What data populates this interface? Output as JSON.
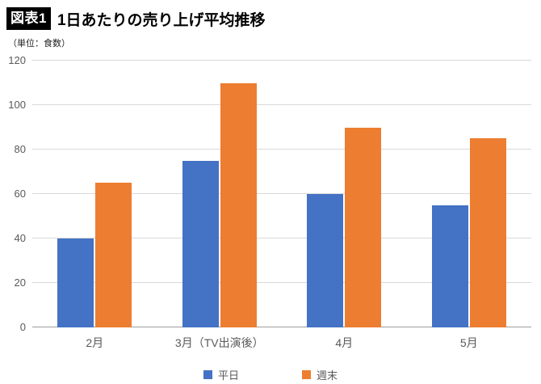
{
  "header": {
    "badge": "図表1"
  },
  "chart_data": {
    "type": "bar",
    "title": "1日あたりの売り上げ平均推移",
    "unit_label": "（単位：食数）",
    "categories": [
      "2月",
      "3月（TV出演後）",
      "4月",
      "5月"
    ],
    "series": [
      {
        "name": "平日",
        "color": "#4472C4",
        "values": [
          40,
          75,
          60,
          55
        ]
      },
      {
        "name": "週末",
        "color": "#ED7D31",
        "values": [
          65,
          110,
          90,
          85
        ]
      }
    ],
    "ylim": [
      0,
      120
    ],
    "yticks": [
      0,
      20,
      40,
      60,
      80,
      100,
      120
    ],
    "grid": true,
    "legend_position": "bottom"
  }
}
